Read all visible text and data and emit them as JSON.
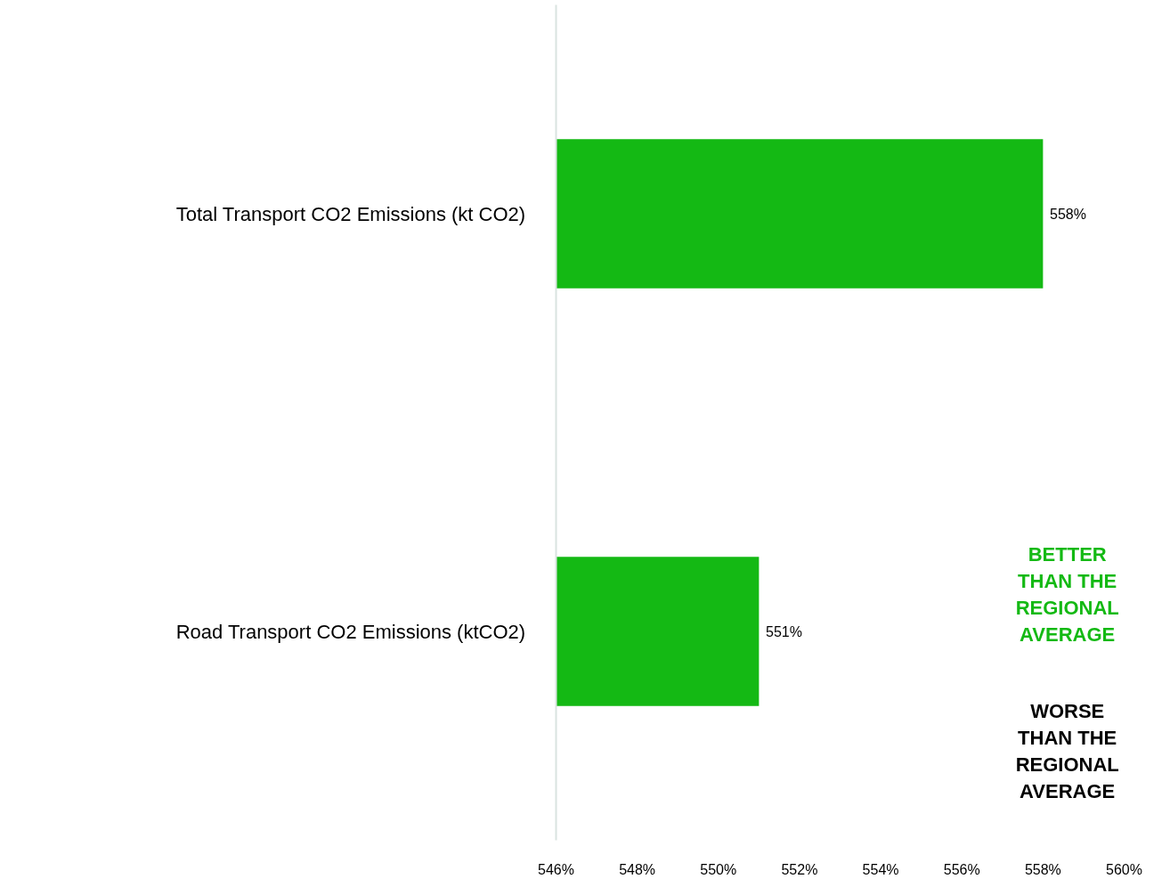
{
  "chart_data": {
    "type": "bar",
    "orientation": "horizontal",
    "categories": [
      "Total Transport CO2 Emissions (kt CO2)",
      "Road Transport CO2 Emissions (ktCO2)"
    ],
    "values": [
      558,
      551
    ],
    "color": "#14b914",
    "value_labels": [
      "558%",
      "551%"
    ],
    "xlim": [
      546,
      560
    ],
    "xticks": [
      {
        "value": 546,
        "label": "546%"
      },
      {
        "value": 548,
        "label": "548%"
      },
      {
        "value": 550,
        "label": "550%"
      },
      {
        "value": 552,
        "label": "552%"
      },
      {
        "value": 554,
        "label": "554%"
      },
      {
        "value": 556,
        "label": "556%"
      },
      {
        "value": 558,
        "label": "558%"
      },
      {
        "value": 560,
        "label": "560%"
      }
    ],
    "annotations": [
      "BETTER\nTHAN THE\nREGIONAL\nAVERAGE",
      "WORSE\nTHAN THE\nREGIONAL\nAVERAGE"
    ],
    "grid": false
  }
}
